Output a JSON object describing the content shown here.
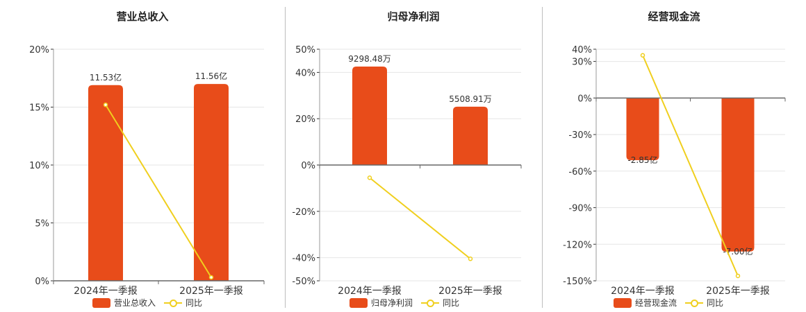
{
  "colors": {
    "bar": "#e84c1a",
    "line": "#f0cf1e",
    "grid": "#e6e6e6",
    "axis": "#333333"
  },
  "legend": {
    "line_label": "同比"
  },
  "chart_data": [
    {
      "type": "bar",
      "title": "营业总收入",
      "categories": [
        "2024年一季报",
        "2025年一季报"
      ],
      "series": [
        {
          "name": "营业总收入",
          "type": "bar",
          "values": [
            16.9,
            17.0
          ],
          "labels": [
            "11.53亿",
            "11.56亿"
          ]
        },
        {
          "name": "同比",
          "type": "line",
          "values": [
            15.2,
            0.3
          ]
        }
      ],
      "ylim": [
        0,
        20
      ],
      "yticks": [
        0,
        5,
        10,
        15,
        20
      ],
      "tick_labels": [
        "0%",
        "5%",
        "10%",
        "15%",
        "20%"
      ]
    },
    {
      "type": "bar",
      "title": "归母净利润",
      "categories": [
        "2024年一季报",
        "2025年一季报"
      ],
      "series": [
        {
          "name": "归母净利润",
          "type": "bar",
          "values": [
            42.5,
            25.2
          ],
          "labels": [
            "9298.48万",
            "5508.91万"
          ]
        },
        {
          "name": "同比",
          "type": "line",
          "values": [
            -5.5,
            -40.5
          ]
        }
      ],
      "ylim": [
        -50,
        50
      ],
      "yticks": [
        -50,
        -40,
        -20,
        0,
        20,
        40,
        50
      ],
      "tick_labels": [
        "-50%",
        "-40%",
        "-20%",
        "0%",
        "20%",
        "40%",
        "50%"
      ]
    },
    {
      "type": "bar",
      "title": "经营现金流",
      "categories": [
        "2024年一季报",
        "2025年一季报"
      ],
      "series": [
        {
          "name": "经营现金流",
          "type": "bar",
          "values": [
            -51.0,
            -126.0
          ],
          "labels": [
            "-2.85亿",
            "-7.00亿"
          ]
        },
        {
          "name": "同比",
          "type": "line",
          "values": [
            35.0,
            -146.0
          ]
        }
      ],
      "ylim": [
        -150,
        40
      ],
      "yticks": [
        -150,
        -120,
        -90,
        -60,
        -30,
        0,
        30,
        40
      ],
      "tick_labels": [
        "-150%",
        "-120%",
        "-90%",
        "-60%",
        "-30%",
        "0%",
        "30%",
        "40%"
      ]
    }
  ]
}
